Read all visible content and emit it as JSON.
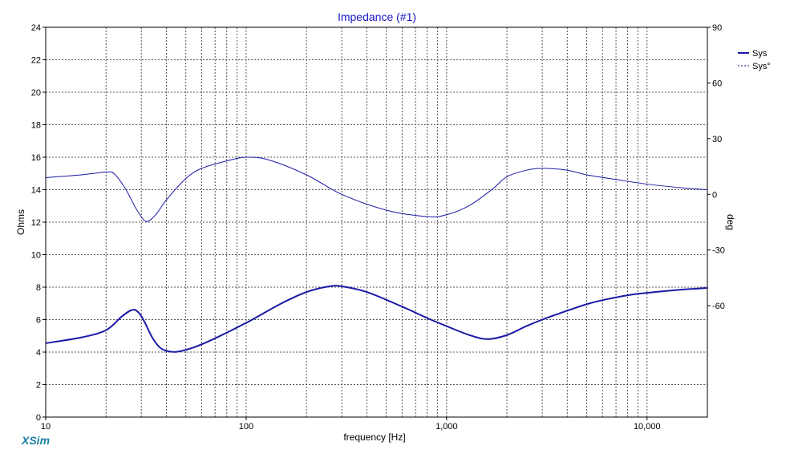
{
  "app_label": "XSim",
  "colors": {
    "title": "#1818c8",
    "series": "#1a1aa6",
    "app_label": "#1a7fa6",
    "axis": "#000000",
    "grid": "#555555"
  },
  "chart_data": {
    "type": "line",
    "title": "Impedance (#1)",
    "xlabel": "frequency [Hz]",
    "ylabel": "Ohms",
    "y2label": "deg",
    "xscale": "log",
    "xlim": [
      10,
      20000
    ],
    "ylim": [
      0,
      24
    ],
    "y2lim": [
      -120,
      90
    ],
    "x_ticks": [
      10,
      100,
      1000,
      10000
    ],
    "x_tick_labels": [
      "10",
      "100",
      "1,000",
      "10,000"
    ],
    "y_ticks": [
      0,
      2,
      4,
      6,
      8,
      10,
      12,
      14,
      16,
      18,
      20,
      22,
      24
    ],
    "y_tick_labels": [
      "0",
      "2",
      "4",
      "6",
      "8",
      "10",
      "12",
      "14",
      "16",
      "18",
      "20",
      "22",
      "24"
    ],
    "y2_ticks": [
      -60,
      -30,
      0,
      30,
      60,
      90
    ],
    "y2_tick_labels": [
      "-60",
      "-30",
      "0",
      "30",
      "60",
      "90"
    ],
    "grid": true,
    "legend_position": "top-right",
    "series": [
      {
        "name": "Sys",
        "axis": "left",
        "style": "solid",
        "x": [
          10,
          15,
          20,
          24,
          27,
          29,
          31,
          34,
          37,
          40,
          45,
          55,
          70,
          100,
          150,
          200,
          260,
          300,
          400,
          600,
          800,
          1000,
          1300,
          1600,
          2000,
          2500,
          3000,
          4000,
          5000,
          6000,
          8000,
          10000,
          15000,
          20000
        ],
        "values": [
          4.55,
          4.9,
          5.35,
          6.2,
          6.6,
          6.45,
          5.9,
          4.9,
          4.3,
          4.08,
          4.02,
          4.3,
          4.85,
          5.8,
          7.0,
          7.7,
          8.05,
          8.05,
          7.7,
          6.8,
          6.1,
          5.6,
          5.05,
          4.8,
          5.05,
          5.6,
          6.0,
          6.55,
          6.95,
          7.2,
          7.5,
          7.65,
          7.85,
          7.95
        ]
      },
      {
        "name": "Sys°",
        "axis": "right",
        "style": "dashed",
        "x": [
          10,
          15,
          20,
          22,
          25,
          28,
          31,
          33,
          36,
          40,
          50,
          60,
          80,
          100,
          130,
          200,
          300,
          500,
          800,
          1000,
          1300,
          1700,
          2000,
          2500,
          3000,
          4000,
          5000,
          7000,
          10000,
          15000,
          20000
        ],
        "values": [
          9,
          10.5,
          12,
          11,
          3,
          -7,
          -14,
          -14,
          -10,
          -3,
          8.5,
          14,
          18,
          20,
          18.5,
          10.5,
          0,
          -8.5,
          -12,
          -11,
          -6,
          3,
          9.5,
          13,
          14,
          13,
          10.5,
          8,
          5.5,
          3.5,
          2.5
        ]
      }
    ]
  }
}
